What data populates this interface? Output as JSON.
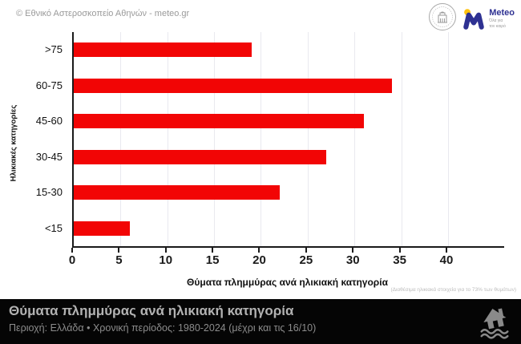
{
  "header": {
    "copyright": "© Εθνικό Αστεροσκοπείο Αθηνών - meteo.gr",
    "meteo_logo": {
      "name": "Meteo",
      "tagline_line1": "Όλα για",
      "tagline_line2": "τον καιρό"
    }
  },
  "chart_data": {
    "type": "bar",
    "orientation": "horizontal",
    "categories": [
      ">75",
      "60-75",
      "45-60",
      "30-45",
      "15-30",
      "<15"
    ],
    "values": [
      19,
      34,
      31,
      27,
      22,
      6
    ],
    "title": "",
    "xlabel": "Θύματα πλημμύρας ανά ηλικιακή κατηγορία",
    "ylabel": "Ηλικιακές κατηγορίες",
    "xticks": [
      0,
      5,
      10,
      15,
      20,
      25,
      30,
      35,
      40
    ],
    "xlim": [
      0,
      46
    ],
    "grid": true,
    "legend": "none",
    "bar_color": "#f20505",
    "footnote": "(Διαθέσιμα ηλικιακά στοιχεία για το 73% των θυμάτων)"
  },
  "footer": {
    "title": "Θύματα πλημμύρας ανά ηλικιακή κατηγορία",
    "subtitle": "Περιοχή: Ελλάδα • Χρονική περίοδος: 1980-2024 (μέχρι και τις 16/10)"
  },
  "colors": {
    "bar": "#f20505",
    "axis": "#1a1a1a",
    "gridline": "#e9e9ef",
    "banner_bg": "#050505",
    "banner_title": "#b2b2b2",
    "banner_subtitle": "#8c8c8c",
    "meteo_blue": "#2e3192",
    "meteo_yellow": "#ffc20e",
    "muted_gray": "#9a9a9a"
  }
}
